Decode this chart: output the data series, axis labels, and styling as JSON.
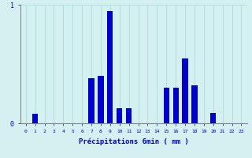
{
  "hours": [
    0,
    1,
    2,
    3,
    4,
    5,
    6,
    7,
    8,
    9,
    10,
    11,
    12,
    13,
    14,
    15,
    16,
    17,
    18,
    19,
    20,
    21,
    22,
    23
  ],
  "values": [
    0.0,
    0.08,
    0.0,
    0.0,
    0.0,
    0.0,
    0.0,
    0.38,
    0.4,
    0.95,
    0.13,
    0.13,
    0.0,
    0.0,
    0.0,
    0.3,
    0.3,
    0.55,
    0.32,
    0.0,
    0.09,
    0.0,
    0.0,
    0.0
  ],
  "ylim": [
    0,
    1.0
  ],
  "yticks": [
    0,
    1
  ],
  "xlabel": "Précipitations 6min ( mm )",
  "bar_color": "#0000cc",
  "bg_color": "#d4f0f0",
  "grid_color": "#b0dede",
  "axis_color": "#888888",
  "tick_label_color": "#0000cc"
}
